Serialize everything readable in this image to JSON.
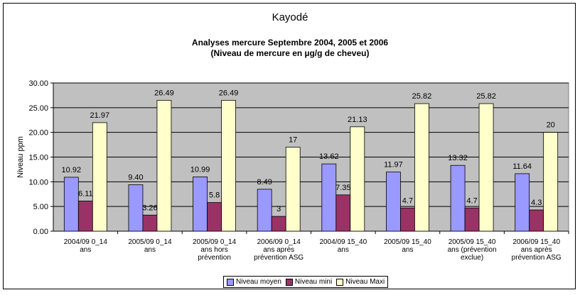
{
  "chart_data": {
    "type": "bar",
    "title": "Kayodé",
    "subtitle_line1": "Analyses mercure Septembre 2004, 2005 et 2006",
    "subtitle_line2": "(Niveau de mercure en µg/g de cheveu)",
    "ylabel": "Niveau ppm",
    "ylim": [
      0,
      30
    ],
    "yticks": [
      "0.00",
      "5.00",
      "10.00",
      "15.00",
      "20.00",
      "25.00",
      "30.00"
    ],
    "grid": true,
    "legend_position": "bottom",
    "categories": [
      [
        "2004/09    0_14",
        "ans"
      ],
      [
        "2005/09    0_14",
        "ans"
      ],
      [
        "2005/09    0_14",
        "ans hors",
        "prévention"
      ],
      [
        "2006/09    0_14",
        "ans après",
        "prévention ASG"
      ],
      [
        "2004/09    15_40",
        "ans"
      ],
      [
        "2005/09    15_40",
        "ans"
      ],
      [
        "2005/09    15_40",
        "ans (prévention",
        "exclue)"
      ],
      [
        "2006/09    15_40",
        "ans après",
        "prévention ASG"
      ]
    ],
    "series": [
      {
        "name": "Niveau moyen",
        "color": "#9999ff",
        "values": [
          10.92,
          9.4,
          10.99,
          8.49,
          13.62,
          11.97,
          13.32,
          11.64
        ],
        "labels": [
          "10.92",
          "9.40",
          "10.99",
          "8.49",
          "13.62",
          "11.97",
          "13.32",
          "11.64"
        ]
      },
      {
        "name": "Niveau mini",
        "color": "#993366",
        "values": [
          6.11,
          3.26,
          5.8,
          3,
          7.35,
          4.7,
          4.7,
          4.3
        ],
        "labels": [
          "6.11",
          "3.26",
          "5.8",
          "3",
          "7.35",
          "4.7",
          "4.7",
          "4.3"
        ]
      },
      {
        "name": "Niveau Maxi",
        "color": "#ffffcc",
        "values": [
          21.97,
          26.49,
          26.49,
          17,
          21.13,
          25.82,
          25.82,
          20
        ],
        "labels": [
          "21.97",
          "26.49",
          "26.49",
          "17",
          "21.13",
          "25.82",
          "25.82",
          "20"
        ]
      }
    ]
  }
}
